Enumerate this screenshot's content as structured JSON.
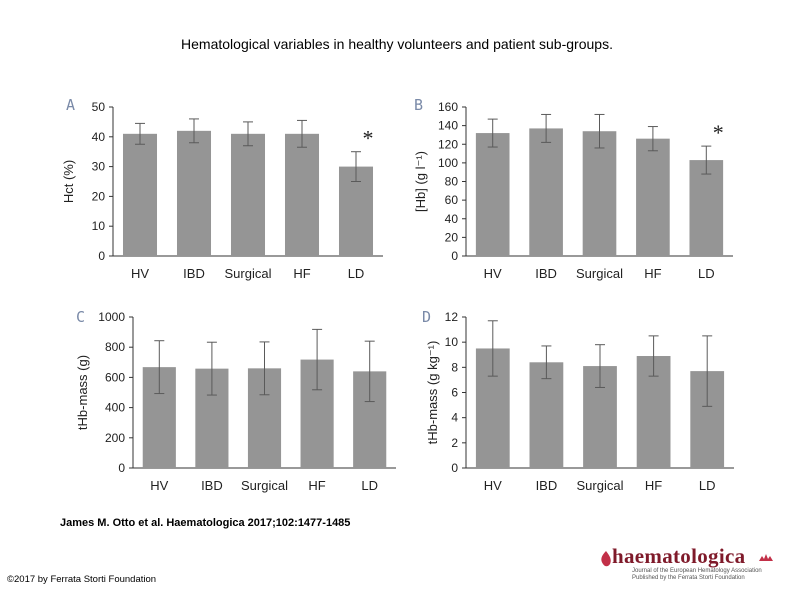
{
  "page_title": "Hematological variables in healthy volunteers and patient sub-groups.",
  "citation": "James M. Otto et al. Haematologica 2017;102:1477-1485",
  "copyright": "©2017 by Ferrata Storti Foundation",
  "logo": {
    "wordmark": "haematologica",
    "line1": "Journal of the European Hematology Association",
    "line2": "Published by the Ferrata Storti Foundation"
  },
  "colors": {
    "bar": "#959595",
    "error": "#5a5a5a",
    "axis": "#333333",
    "panel_letter": "#7a8aa8",
    "logo": "#7f1a2a"
  },
  "chart_data": [
    {
      "panel": "A",
      "type": "bar",
      "categories": [
        "HV",
        "IBD",
        "Surgical",
        "HF",
        "LD"
      ],
      "values": [
        41,
        42,
        41,
        41,
        30
      ],
      "error": [
        3.5,
        4,
        4,
        4.5,
        5
      ],
      "significance": [
        "",
        "",
        "",
        "",
        "*"
      ],
      "ylabel": "Hct (%)",
      "ylim": [
        0,
        50
      ],
      "yticks": [
        0,
        10,
        20,
        30,
        40,
        50
      ],
      "grid": false
    },
    {
      "panel": "B",
      "type": "bar",
      "categories": [
        "HV",
        "IBD",
        "Surgical",
        "HF",
        "LD"
      ],
      "values": [
        132,
        137,
        134,
        126,
        103
      ],
      "error": [
        15,
        15,
        18,
        13,
        15
      ],
      "significance": [
        "",
        "",
        "",
        "",
        "*"
      ],
      "ylabel": "[Hb] (g l⁻¹)",
      "ylim": [
        0,
        160
      ],
      "yticks": [
        0,
        20,
        40,
        60,
        80,
        100,
        120,
        140,
        160
      ],
      "grid": false
    },
    {
      "panel": "C",
      "type": "bar",
      "categories": [
        "HV",
        "IBD",
        "Surgical",
        "HF",
        "LD"
      ],
      "values": [
        668,
        658,
        660,
        718,
        640
      ],
      "error": [
        175,
        175,
        175,
        200,
        200
      ],
      "significance": [
        "",
        "",
        "",
        "",
        ""
      ],
      "ylabel": "tHb-mass (g)",
      "ylim": [
        0,
        1000
      ],
      "yticks": [
        0,
        200,
        400,
        600,
        800,
        1000
      ],
      "grid": false
    },
    {
      "panel": "D",
      "type": "bar",
      "categories": [
        "HV",
        "IBD",
        "Surgical",
        "HF",
        "LD"
      ],
      "values": [
        9.5,
        8.4,
        8.1,
        8.9,
        7.7
      ],
      "error": [
        2.2,
        1.3,
        1.7,
        1.6,
        2.8
      ],
      "significance": [
        "",
        "",
        "",
        "",
        ""
      ],
      "ylabel": "tHb-mass (g kg⁻¹)",
      "ylim": [
        0,
        12
      ],
      "yticks": [
        0,
        2,
        4,
        6,
        8,
        10,
        12
      ],
      "grid": false
    }
  ]
}
